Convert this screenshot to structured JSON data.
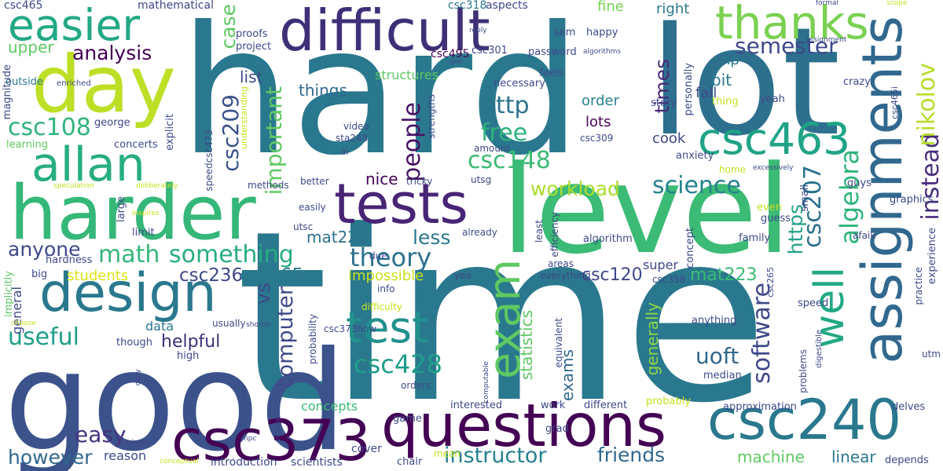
{
  "words": [
    {
      "text": "time",
      "color": "#2a788e"
    },
    {
      "text": "hard",
      "color": "#2a788e"
    },
    {
      "text": "good",
      "color": "#3b528b"
    },
    {
      "text": "level",
      "color": "#3bbb75"
    },
    {
      "text": "lot",
      "color": "#2d708e"
    },
    {
      "text": "harder",
      "color": "#35b779"
    },
    {
      "text": "day",
      "color": "#bddf26"
    },
    {
      "text": "difficult",
      "color": "#3e2f77"
    },
    {
      "text": "questions",
      "color": "#440154"
    },
    {
      "text": "design",
      "color": "#2a788e"
    },
    {
      "text": "tests",
      "color": "#482475"
    },
    {
      "text": "csc240",
      "color": "#2a788e"
    },
    {
      "text": "csc373",
      "color": "#440154"
    },
    {
      "text": "assignments",
      "color": "#31688e"
    },
    {
      "text": "csc463",
      "color": "#20a386"
    },
    {
      "text": "allan",
      "color": "#28ae80"
    },
    {
      "text": "easier",
      "color": "#22a884"
    },
    {
      "text": "thanks",
      "color": "#7ad151"
    },
    {
      "text": "test",
      "color": "#21918c"
    },
    {
      "text": "exam",
      "color": "#5ec962"
    },
    {
      "text": "well",
      "color": "#22a884"
    },
    {
      "text": "math",
      "color": "#35b779"
    },
    {
      "text": "something",
      "color": "#27ad81"
    },
    {
      "text": "theory",
      "color": "#2c728e"
    },
    {
      "text": "useful",
      "color": "#1f9e89"
    },
    {
      "text": "csc428",
      "color": "#1f9e89"
    },
    {
      "text": "instructor",
      "color": "#26828e"
    },
    {
      "text": "easy",
      "color": "#46337e"
    },
    {
      "text": "however",
      "color": "#31688e"
    },
    {
      "text": "science",
      "color": "#26828e"
    },
    {
      "text": "semester",
      "color": "#3e4989"
    },
    {
      "text": "free",
      "color": "#2fb47c"
    },
    {
      "text": "people",
      "color": "#471164"
    },
    {
      "text": "http",
      "color": "#2c728e"
    },
    {
      "text": "csc148",
      "color": "#3bbb75"
    },
    {
      "text": "workload",
      "color": "#addc30"
    },
    {
      "text": "software",
      "color": "#3e4989"
    },
    {
      "text": "algebra",
      "color": "#2fb47c"
    },
    {
      "text": "instead",
      "color": "#472d7b"
    },
    {
      "text": "nikolov",
      "color": "#b5de2b"
    },
    {
      "text": "csc207",
      "color": "#2c728e"
    },
    {
      "text": "https",
      "color": "#1fa187"
    },
    {
      "text": "uoft",
      "color": "#31688e"
    },
    {
      "text": "friends",
      "color": "#31688e"
    },
    {
      "text": "csc108",
      "color": "#2fb47c"
    },
    {
      "text": "analysis",
      "color": "#440154"
    },
    {
      "text": "csc209",
      "color": "#3b528b"
    },
    {
      "text": "important",
      "color": "#5ec962"
    },
    {
      "text": "computer",
      "color": "#3e4989"
    },
    {
      "text": "helpful",
      "color": "#3e2f77"
    },
    {
      "text": "anyone",
      "color": "#3e4989"
    },
    {
      "text": "csc236",
      "color": "#3e4989"
    },
    {
      "text": "csc165",
      "color": "#2a788e"
    },
    {
      "text": "csc120",
      "color": "#3e4989"
    },
    {
      "text": "mat223",
      "color": "#3bbb75"
    },
    {
      "text": "mat221",
      "color": "#2d708e"
    },
    {
      "text": "less",
      "color": "#2a788e"
    },
    {
      "text": "vs",
      "color": "#3e4989"
    },
    {
      "text": "students",
      "color": "#dde318"
    },
    {
      "text": "impossible",
      "color": "#c8e020"
    },
    {
      "text": "times",
      "color": "#482878"
    },
    {
      "text": "case",
      "color": "#5ec962"
    },
    {
      "text": "list",
      "color": "#3e4989"
    },
    {
      "text": "things",
      "color": "#31688e"
    },
    {
      "text": "nice",
      "color": "#440154"
    },
    {
      "text": "upper",
      "color": "#5ec962"
    },
    {
      "text": "bit",
      "color": "#2a788e"
    },
    {
      "text": "fall",
      "color": "#3e4989"
    },
    {
      "text": "right",
      "color": "#2a788e"
    },
    {
      "text": "fine",
      "color": "#7ad151"
    },
    {
      "text": "order",
      "color": "#26828e"
    },
    {
      "text": "lots",
      "color": "#440154"
    },
    {
      "text": "cook",
      "color": "#3e4989"
    },
    {
      "text": "np",
      "color": "#2a788e"
    },
    {
      "text": "machine",
      "color": "#5ec962"
    },
    {
      "text": "linear",
      "color": "#2a788e"
    },
    {
      "text": "exams",
      "color": "#31688e"
    },
    {
      "text": "generally",
      "color": "#8fd744"
    },
    {
      "text": "statistics",
      "color": "#5ec962"
    },
    {
      "text": "concepts",
      "color": "#3bbb75"
    },
    {
      "text": "structures",
      "color": "#5ec962"
    },
    {
      "text": "data",
      "color": "#2a788e"
    },
    {
      "text": "general",
      "color": "#3e4989"
    },
    {
      "text": "super",
      "color": "#3e4989"
    },
    {
      "text": "reason",
      "color": "#3e4989"
    },
    {
      "text": "introduction",
      "color": "#3e4989"
    },
    {
      "text": "scientists",
      "color": "#3e4989"
    },
    {
      "text": "cover",
      "color": "#3e4989"
    },
    {
      "text": "george",
      "color": "#3e4989"
    },
    {
      "text": "mathematical",
      "color": "#3e4989"
    },
    {
      "text": "aspects",
      "color": "#3e4989"
    },
    {
      "text": "csc318",
      "color": "#2a788e"
    },
    {
      "text": "csc465",
      "color": "#3e4989"
    },
    {
      "text": "sem",
      "color": "#3e4989"
    },
    {
      "text": "happy",
      "color": "#3e4989"
    },
    {
      "text": "password",
      "color": "#3e4989"
    },
    {
      "text": "csc301",
      "color": "#3e4989"
    },
    {
      "text": "csc495",
      "color": "#440154"
    },
    {
      "text": "project",
      "color": "#3e4989"
    },
    {
      "text": "proofs",
      "color": "#3e4989"
    },
    {
      "text": "outside",
      "color": "#2a788e"
    },
    {
      "text": "enriched",
      "color": "#3e4989"
    },
    {
      "text": "magnitude",
      "color": "#3e4989"
    },
    {
      "text": "learning",
      "color": "#5ec962"
    },
    {
      "text": "concerts",
      "color": "#3e4989"
    },
    {
      "text": "explicit",
      "color": "#3e4989"
    },
    {
      "text": "necessary",
      "color": "#3e4989"
    },
    {
      "text": "feels",
      "color": "#3e4989"
    },
    {
      "text": "story",
      "color": "#3e4989"
    },
    {
      "text": "thing",
      "color": "#c8e020"
    },
    {
      "text": "yeah",
      "color": "#3e4989"
    },
    {
      "text": "personally",
      "color": "#3e4989"
    },
    {
      "text": "crazy",
      "color": "#3e4989"
    },
    {
      "text": "anxiety",
      "color": "#3e4989"
    },
    {
      "text": "home",
      "color": "#c8e020"
    },
    {
      "text": "excessively",
      "color": "#3e4989"
    },
    {
      "text": "guys",
      "color": "#3e4989"
    },
    {
      "text": "graphics",
      "color": "#3e4989"
    },
    {
      "text": "guess",
      "color": "#3e4989"
    },
    {
      "text": "even",
      "color": "#c8e020"
    },
    {
      "text": "small",
      "color": "#3e4989"
    },
    {
      "text": "family",
      "color": "#3e4989"
    },
    {
      "text": "afaik",
      "color": "#3e4989"
    },
    {
      "text": "algorithm",
      "color": "#3e4989"
    },
    {
      "text": "concept",
      "color": "#3e4989"
    },
    {
      "text": "speed",
      "color": "#3e4989"
    },
    {
      "text": "anything",
      "color": "#3e4989"
    },
    {
      "text": "csc358",
      "color": "#3e4989"
    },
    {
      "text": "csc265",
      "color": "#3e4989"
    },
    {
      "text": "median",
      "color": "#3e4989"
    },
    {
      "text": "approximation",
      "color": "#3e4989"
    },
    {
      "text": "probably",
      "color": "#c8e020"
    },
    {
      "text": "depends",
      "color": "#3e4989"
    },
    {
      "text": "delves",
      "color": "#3e4989"
    },
    {
      "text": "practice",
      "color": "#3e4989"
    },
    {
      "text": "experience",
      "color": "#3e4989"
    },
    {
      "text": "utm",
      "color": "#3e4989"
    },
    {
      "text": "digestible",
      "color": "#3e4989"
    },
    {
      "text": "problems",
      "color": "#3e4989"
    },
    {
      "text": "different",
      "color": "#3e4989"
    },
    {
      "text": "work",
      "color": "#3e4989"
    },
    {
      "text": "grad",
      "color": "#3e4989"
    },
    {
      "text": "interested",
      "color": "#3e4989"
    },
    {
      "text": "game",
      "color": "#3e4989"
    },
    {
      "text": "orders",
      "color": "#3e4989"
    },
    {
      "text": "mean",
      "color": "#c8e020"
    },
    {
      "text": "chair",
      "color": "#3e4989"
    },
    {
      "text": "conceptual",
      "color": "#c8e020"
    },
    {
      "text": "npc",
      "color": "#3e4989"
    },
    {
      "text": "winter",
      "color": "#3e4989"
    },
    {
      "text": "okay",
      "color": "#3e4989"
    },
    {
      "text": "version",
      "color": "#3e4989"
    },
    {
      "text": "ever",
      "color": "#3e4989"
    },
    {
      "text": "high",
      "color": "#3e4989"
    },
    {
      "text": "though",
      "color": "#3e4989"
    },
    {
      "text": "usually",
      "color": "#3e4989"
    },
    {
      "text": "choose",
      "color": "#c8e020"
    },
    {
      "text": "implicitly",
      "color": "#5ec962"
    },
    {
      "text": "big",
      "color": "#3e4989"
    },
    {
      "text": "hardness",
      "color": "#3e4989"
    },
    {
      "text": "limit",
      "color": "#3e4989"
    },
    {
      "text": "large",
      "color": "#3e4989"
    },
    {
      "text": "inspires",
      "color": "#c8e020"
    },
    {
      "text": "speculation",
      "color": "#c8e020"
    },
    {
      "text": "deliberately",
      "color": "#c8e020"
    },
    {
      "text": "methods",
      "color": "#3e4989"
    },
    {
      "text": "better",
      "color": "#3e4989"
    },
    {
      "text": "easily",
      "color": "#3e4989"
    },
    {
      "text": "utsc",
      "color": "#3e4989"
    },
    {
      "text": "due",
      "color": "#3e4989"
    },
    {
      "text": "yea",
      "color": "#3e4989"
    },
    {
      "text": "info",
      "color": "#3e4989"
    },
    {
      "text": "difficulty",
      "color": "#c8e020"
    },
    {
      "text": "probability",
      "color": "#3e4989"
    },
    {
      "text": "csc373how",
      "color": "#3e4989"
    },
    {
      "text": "shorter",
      "color": "#3e4989"
    },
    {
      "text": "computable",
      "color": "#3e4989"
    },
    {
      "text": "equivalent",
      "color": "#3e4989"
    },
    {
      "text": "everything",
      "color": "#3e4989"
    },
    {
      "text": "areas",
      "color": "#3e4989"
    },
    {
      "text": "least",
      "color": "#3e4989"
    },
    {
      "text": "efficiency",
      "color": "#3e4989"
    },
    {
      "text": "already",
      "color": "#3e4989"
    },
    {
      "text": "tricky",
      "color": "#3e4989"
    },
    {
      "text": "utsg",
      "color": "#3e4989"
    },
    {
      "text": "amount",
      "color": "#3e4989"
    },
    {
      "text": "csc309",
      "color": "#3e4989"
    },
    {
      "text": "video",
      "color": "#3e4989"
    },
    {
      "text": "sta248",
      "color": "#3e4989"
    },
    {
      "text": "ai",
      "color": "#3e4989"
    },
    {
      "text": "speedcsc473",
      "color": "#3e4989"
    },
    {
      "text": "understanding",
      "color": "#c8e020"
    },
    {
      "text": "strengths",
      "color": "#3e4989"
    },
    {
      "text": "reply",
      "color": "#3e4989"
    },
    {
      "text": "algorithms",
      "color": "#3e4989"
    },
    {
      "text": "gon",
      "color": "#3e4989"
    },
    {
      "text": "formal",
      "color": "#3e4989"
    },
    {
      "text": "scope",
      "color": "#c8e020"
    },
    {
      "text": "assignment",
      "color": "#3e4989"
    },
    {
      "text": "csc465i",
      "color": "#3e4989"
    }
  ]
}
